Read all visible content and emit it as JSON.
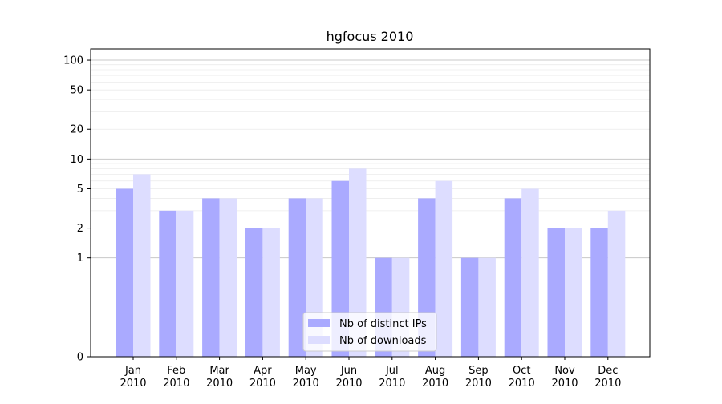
{
  "chart_data": {
    "type": "bar",
    "title": "hgfocus 2010",
    "xlabel": "",
    "ylabel": "",
    "y_scale": "symlog",
    "ylim": [
      0,
      130
    ],
    "y_ticks": [
      0,
      1,
      2,
      5,
      10,
      20,
      50,
      100
    ],
    "y_tick_labels": [
      "0",
      "1",
      "2",
      "5",
      "10",
      "20",
      "50",
      "100"
    ],
    "grid": true,
    "legend_position": "bottom-center",
    "categories": [
      [
        "Jan",
        "2010"
      ],
      [
        "Feb",
        "2010"
      ],
      [
        "Mar",
        "2010"
      ],
      [
        "Apr",
        "2010"
      ],
      [
        "May",
        "2010"
      ],
      [
        "Jun",
        "2010"
      ],
      [
        "Jul",
        "2010"
      ],
      [
        "Aug",
        "2010"
      ],
      [
        "Sep",
        "2010"
      ],
      [
        "Oct",
        "2010"
      ],
      [
        "Nov",
        "2010"
      ],
      [
        "Dec",
        "2010"
      ]
    ],
    "series": [
      {
        "name": "Nb of distinct IPs",
        "color": "#aaaaff",
        "values": [
          5,
          3,
          4,
          2,
          4,
          6,
          1,
          4,
          1,
          4,
          2,
          2
        ]
      },
      {
        "name": "Nb of downloads",
        "color": "#ddddff",
        "values": [
          7,
          3,
          4,
          2,
          4,
          8,
          1,
          6,
          1,
          5,
          2,
          3
        ]
      }
    ]
  }
}
